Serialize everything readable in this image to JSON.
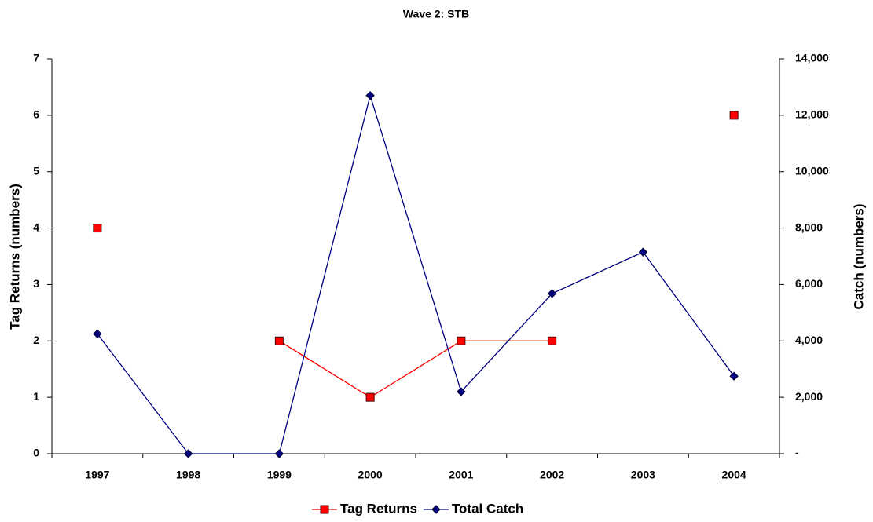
{
  "chart_data": {
    "type": "line",
    "title": "Wave 2: STB",
    "ylabel": "Tag Returns (numbers)",
    "y2label": "Catch (numbers)",
    "categories": [
      "1997",
      "1998",
      "1999",
      "2000",
      "2001",
      "2002",
      "2003",
      "2004"
    ],
    "series": [
      {
        "name": "Tag Returns",
        "color": "#ff0000",
        "values": [
          4,
          null,
          2,
          1,
          2,
          2,
          null,
          6
        ]
      },
      {
        "name": "Total Catch",
        "color": "#000080",
        "axis": "y2",
        "values": [
          4250,
          0,
          0,
          12700,
          2200,
          5680,
          7150,
          2750
        ]
      }
    ],
    "ylim": [
      0,
      7
    ],
    "yticks": [
      0,
      1,
      2,
      3,
      4,
      5,
      6,
      7
    ],
    "y2lim": [
      0,
      14000
    ],
    "y2ticks": [
      {
        "value": 0,
        "label": "-"
      },
      {
        "value": 2000,
        "label": "2,000"
      },
      {
        "value": 4000,
        "label": "4,000"
      },
      {
        "value": 6000,
        "label": "6,000"
      },
      {
        "value": 8000,
        "label": "8,000"
      },
      {
        "value": 10000,
        "label": "10,000"
      },
      {
        "value": 12000,
        "label": "12,000"
      },
      {
        "value": 14000,
        "label": "14,000"
      }
    ],
    "legend": "bottom"
  }
}
